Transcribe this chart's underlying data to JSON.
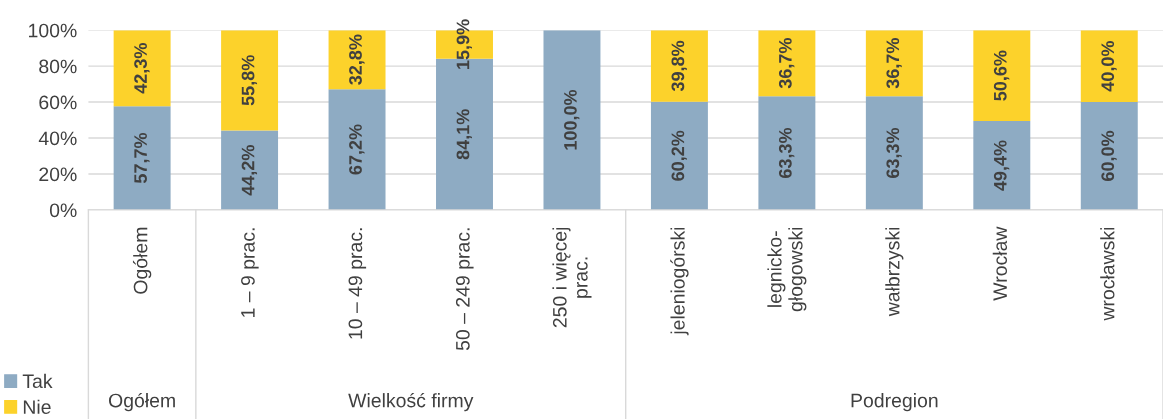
{
  "chart_data": {
    "type": "bar",
    "stacked": true,
    "categories": [
      "Ogółem",
      "1 – 9 prac.",
      "10 – 49 prac.",
      "50 – 249 prac.",
      "250 i więcej\nprac.",
      "jeleniogórski",
      "legnicko-\ngłogowski",
      "wałbrzyski",
      "Wrocław",
      "wrocławski"
    ],
    "series": [
      {
        "name": "Tak",
        "color": "#8eabc3",
        "values": [
          57.7,
          44.2,
          67.2,
          84.1,
          100.0,
          60.2,
          63.3,
          63.3,
          49.4,
          60.0
        ],
        "value_labels": [
          "57,7%",
          "44,2%",
          "67,2%",
          "84,1%",
          "100,0%",
          "60,2%",
          "63,3%",
          "63,3%",
          "49,4%",
          "60,0%"
        ]
      },
      {
        "name": "Nie",
        "color": "#fcd22b",
        "values": [
          42.3,
          55.8,
          32.8,
          15.9,
          0,
          39.8,
          36.7,
          36.7,
          50.6,
          40.0
        ],
        "value_labels": [
          "42,3%",
          "55,8%",
          "32,8%",
          "15,9%",
          null,
          "39,8%",
          "36,7%",
          "36,7%",
          "50,6%",
          "40,0%"
        ]
      }
    ],
    "ylim": [
      0,
      100
    ],
    "yticks": [
      {
        "value": 0,
        "label": "0%"
      },
      {
        "value": 20,
        "label": "20%"
      },
      {
        "value": 40,
        "label": "40%"
      },
      {
        "value": 60,
        "label": "60%"
      },
      {
        "value": 80,
        "label": "80%"
      },
      {
        "value": 100,
        "label": "100%"
      }
    ],
    "grid": "y",
    "legend": "bottom left",
    "annotations": [
      "Ogółem",
      "Wielkość firmy",
      "Podregion"
    ]
  }
}
